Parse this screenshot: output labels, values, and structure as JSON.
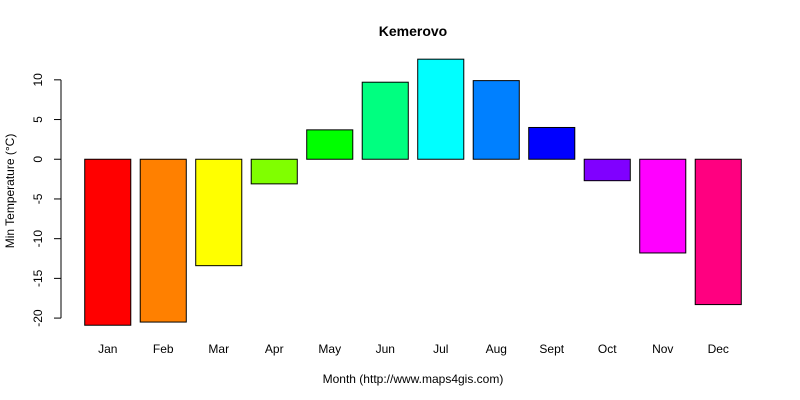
{
  "chart_data": {
    "type": "bar",
    "title": "Kemerovo",
    "xlabel": "Month (http://www.maps4gis.com)",
    "ylabel": "Min Temperature (°C)",
    "categories": [
      "Jan",
      "Feb",
      "Mar",
      "Apr",
      "May",
      "Jun",
      "Jul",
      "Aug",
      "Sept",
      "Oct",
      "Nov",
      "Dec"
    ],
    "values": [
      -20.9,
      -20.5,
      -13.4,
      -3.1,
      3.7,
      9.7,
      12.6,
      9.9,
      4.0,
      -2.7,
      -11.8,
      -18.3
    ],
    "colors": [
      "#FF0000",
      "#FF8000",
      "#FFFF00",
      "#80FF00",
      "#00FF00",
      "#00FF80",
      "#00FFFF",
      "#0080FF",
      "#0000FF",
      "#8000FF",
      "#FF00FF",
      "#FF0080"
    ],
    "yticks": [
      -20,
      -15,
      -10,
      -5,
      0,
      5,
      10
    ],
    "ylim": [
      -21.5,
      13.0
    ],
    "grid": false,
    "legend": "none"
  }
}
